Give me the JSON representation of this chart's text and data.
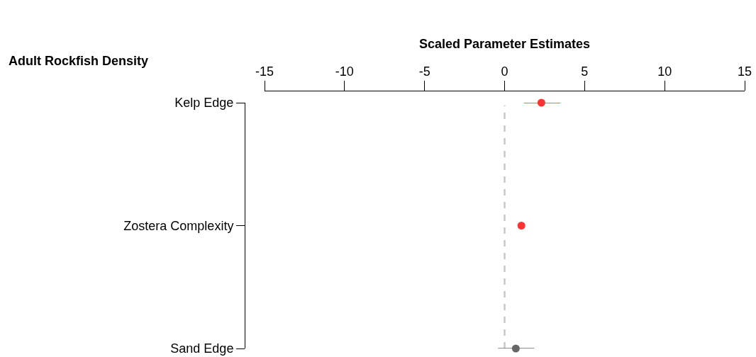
{
  "chart_data": {
    "type": "scatter",
    "orientation": "horizontal",
    "xlabel": "Scaled Parameter Estimates",
    "ylabel": "Adult Rockfish Density",
    "categories": [
      "Kelp Edge",
      "Zostera Complexity",
      "Sand Edge"
    ],
    "values": [
      2.3,
      1.05,
      0.7
    ],
    "errors": [
      [
        1.2,
        3.5
      ],
      null,
      [
        -0.4,
        1.85
      ]
    ],
    "colors": [
      "#ff3333",
      "#ff3333",
      "#666666"
    ],
    "xlim": [
      -15,
      15
    ],
    "xticks": [
      -15,
      -10,
      -5,
      0,
      5,
      10,
      15
    ],
    "ref_lines": [
      {
        "axis": "x",
        "value": 0,
        "color": "#c8c8c8",
        "line_style": "dashed"
      }
    ],
    "marker": "circle",
    "grid": false,
    "legend": false
  }
}
